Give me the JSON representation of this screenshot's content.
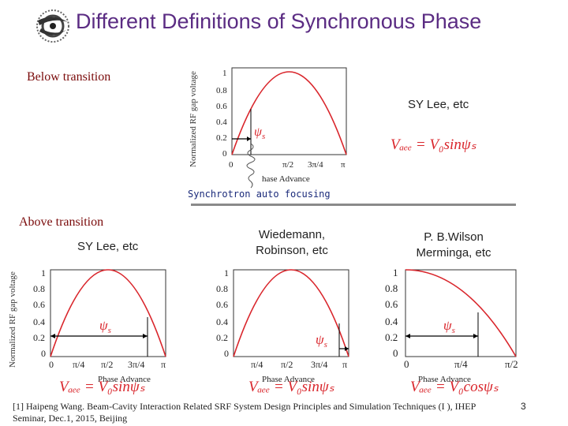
{
  "title": "Different Definitions of Synchronous Phase",
  "labels": {
    "below_transition": "Below transition",
    "above_transition": "Above transition",
    "sy_lee_top": "SY Lee, etc",
    "sy_lee_mid": "SY Lee, etc",
    "wiedemann_line1": "Wiedemann,",
    "wiedemann_line2": "Robinson, etc",
    "wilson_line1": "P. B.Wilson",
    "wilson_line2": "Merminga, etc",
    "synchrotron": "Synchrotron auto focusing"
  },
  "formulas": {
    "top": "Vₐₑₑ = V₀sinψₛ",
    "left": "Vₐₑₑ = V₀sinψₛ",
    "mid": "Vₐₑₑ = V₀sinψₛ",
    "right": "Vₐₑₑ = V₀cosψₛ"
  },
  "plot_text": {
    "ylabel": "Normalized RF gap voltage",
    "xlabel": "Phase Advance",
    "xlabel_top": "hase Advance",
    "psi": "ψ",
    "psi_sub": "s",
    "yticks": [
      "0",
      "0.2",
      "0.4",
      "0.6",
      "0.8",
      "1"
    ],
    "xticks_full": [
      "0",
      "π/4",
      "π/2",
      "3π/4",
      "π"
    ],
    "xticks_top": [
      "0",
      "π/2",
      "3π/4",
      "π"
    ],
    "xticks_right": [
      "0",
      "π/4",
      "π/2"
    ]
  },
  "reference": {
    "line1": "[1] Haipeng Wang. Beam-Cavity Interaction Related SRF System Design Principles and Simulation Techniques (I ), IHEP",
    "line2": "Seminar, Dec.1, 2015, Beijing"
  },
  "page_number": "3",
  "colors": {
    "title": "#5b2c83",
    "curve": "#d9252b",
    "label": "#7a0a0a"
  }
}
